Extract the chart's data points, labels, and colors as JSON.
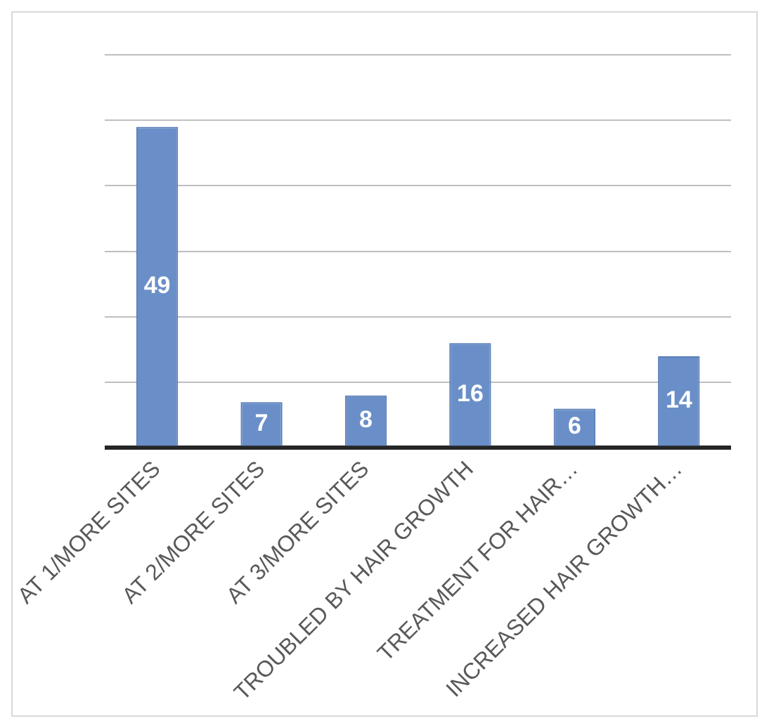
{
  "chart_data": {
    "type": "bar",
    "categories": [
      "AT 1/MORE SITES",
      "AT 2/MORE SITES",
      "AT 3/MORE SITES",
      "TROUBLED BY HAIR GROWTH",
      "TREATMENT FOR HAIR…",
      "INCREASED HAIR GROWTH…"
    ],
    "values": [
      49,
      7,
      8,
      16,
      6,
      14
    ],
    "color": "#6a8fc8",
    "data_labels": true,
    "ylim": [
      0,
      60
    ],
    "yticks": [
      {
        "value": 0,
        "label": null
      },
      {
        "value": 10,
        "label": null
      },
      {
        "value": 20,
        "label": null
      },
      {
        "value": 30,
        "label": null
      },
      {
        "value": 40,
        "label": null
      },
      {
        "value": 50,
        "label": null
      },
      {
        "value": 60,
        "label": null
      }
    ],
    "grid": "y",
    "tick_labels": "x",
    "legend": false
  }
}
